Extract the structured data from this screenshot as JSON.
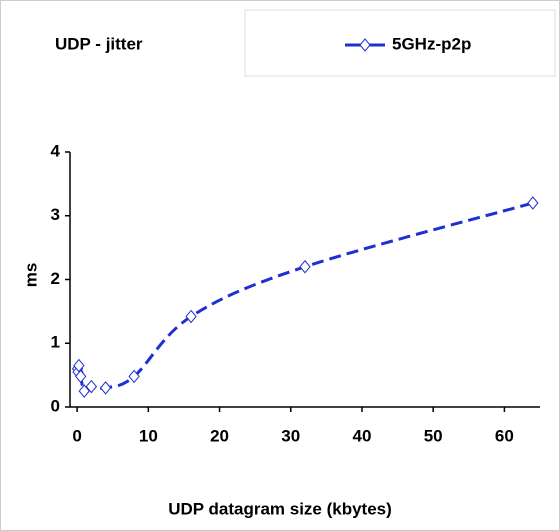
{
  "chart_data": {
    "type": "line",
    "title": "UDP - jitter",
    "x_label": "UDP datagram size (kbytes)",
    "y_label": "ms",
    "x": [
      0.0625,
      0.125,
      0.25,
      0.5,
      1,
      2,
      4,
      8,
      16,
      32,
      64
    ],
    "series": [
      {
        "name": "5GHz-p2p",
        "color": "#1f2fd0",
        "values": [
          0.6,
          0.55,
          0.65,
          0.48,
          0.25,
          0.32,
          0.3,
          0.48,
          1.42,
          2.2,
          3.2
        ]
      }
    ],
    "xlim": [
      -1,
      65
    ],
    "ylim": [
      0,
      4
    ],
    "xticks": [
      0,
      10,
      20,
      30,
      40,
      50,
      60
    ],
    "yticks": [
      0,
      1,
      2,
      3,
      4
    ],
    "legend": "top-right"
  }
}
